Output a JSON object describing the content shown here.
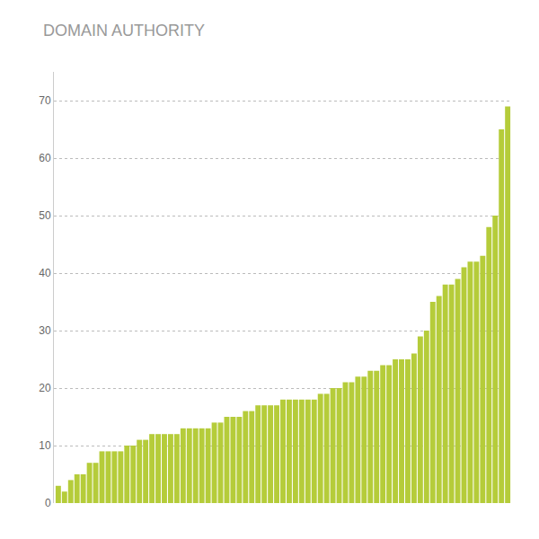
{
  "chart_data": {
    "type": "bar",
    "title": "DOMAIN AUTHORITY",
    "categories": [
      null,
      null,
      null,
      null,
      null,
      null,
      null,
      null,
      null,
      null,
      null,
      null,
      null,
      null,
      null,
      null,
      null,
      null,
      null,
      null,
      null,
      null,
      null,
      null,
      null,
      null,
      null,
      null,
      null,
      null,
      null,
      null,
      null,
      null,
      null,
      null,
      null,
      null,
      null,
      null,
      null,
      null,
      null,
      null,
      null,
      null,
      null,
      null,
      null,
      null,
      null,
      null,
      null,
      null,
      null,
      null,
      null,
      null,
      null,
      null,
      null,
      null,
      null,
      null,
      null,
      null,
      null,
      null,
      null,
      null,
      null,
      null,
      null
    ],
    "values": [
      3,
      2,
      4,
      5,
      5,
      7,
      7,
      9,
      9,
      9,
      9,
      10,
      10,
      11,
      11,
      12,
      12,
      12,
      12,
      12,
      13,
      13,
      13,
      13,
      13,
      14,
      14,
      15,
      15,
      15,
      16,
      16,
      17,
      17,
      17,
      17,
      18,
      18,
      18,
      18,
      18,
      18,
      19,
      19,
      20,
      20,
      21,
      21,
      22,
      22,
      23,
      23,
      24,
      24,
      25,
      25,
      25,
      26,
      29,
      30,
      35,
      36,
      38,
      38,
      39,
      41,
      42,
      42,
      43,
      48,
      50,
      65,
      69
    ],
    "color": "#b5cc3a",
    "ylim": [
      0,
      75
    ],
    "yticks": [
      0,
      10,
      20,
      30,
      40,
      50,
      60,
      70
    ],
    "grid": true,
    "tick_labels": "y"
  }
}
